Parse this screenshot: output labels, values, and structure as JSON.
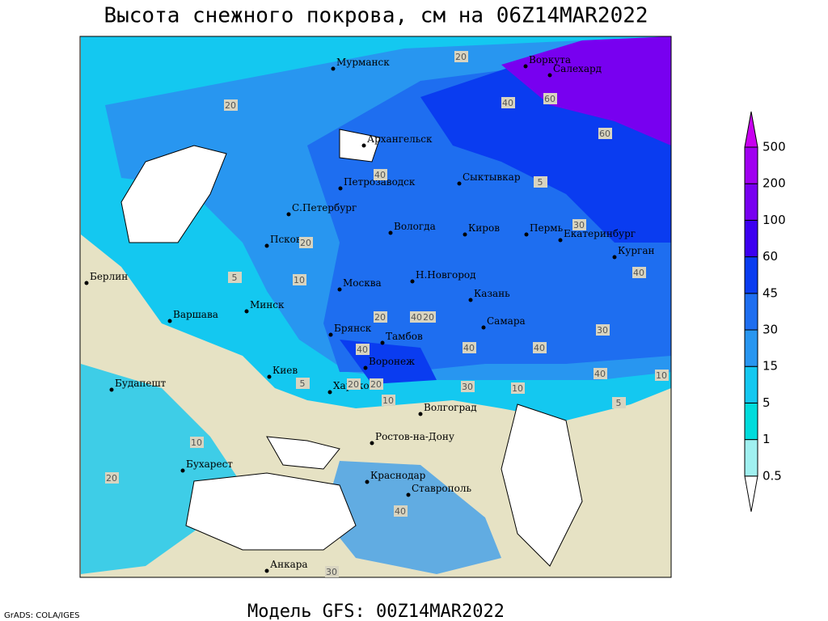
{
  "header": {
    "title": "Высота снежного покрова, см на 06Z14MAR2022"
  },
  "footer": {
    "model": "Модель GFS: 00Z14MAR2022",
    "credit": "GrADS: COLA/IGES"
  },
  "legend": {
    "levels": [
      0.5,
      1,
      5,
      15,
      30,
      45,
      60,
      100,
      200,
      500
    ],
    "colors": [
      "#ffffff",
      "#a0f0f0",
      "#00dcdc",
      "#14c8f0",
      "#2896f0",
      "#1e6ef0",
      "#0a3cf0",
      "#3c00f0",
      "#7800f0",
      "#a000f0",
      "#c800f0"
    ]
  },
  "cities": [
    "Мурманск",
    "Воркута",
    "Салехард",
    "Архангельск",
    "Сыктывкар",
    "Петрозаводск",
    "С.Петербург",
    "Вологда",
    "Киров",
    "Пермь",
    "Екатеринбург",
    "Курган",
    "Псков",
    "Берлин",
    "Москва",
    "Н.Новгород",
    "Казань",
    "Минск",
    "Варшава",
    "Брянск",
    "Тамбов",
    "Самара",
    "Воронеж",
    "Киев",
    "Будапешт",
    "Харьков",
    "Волгоград",
    "Ростов-на-Дону",
    "Бухарест",
    "Краснодар",
    "Ставрополь",
    "Анкара"
  ],
  "contour_labels": [
    20,
    40,
    60,
    20,
    40,
    30,
    40,
    20,
    20,
    10,
    30,
    40,
    60,
    40,
    20,
    10,
    5,
    20,
    40,
    40,
    30,
    40,
    10,
    5,
    20,
    10,
    5,
    10,
    20,
    40,
    30,
    5
  ]
}
